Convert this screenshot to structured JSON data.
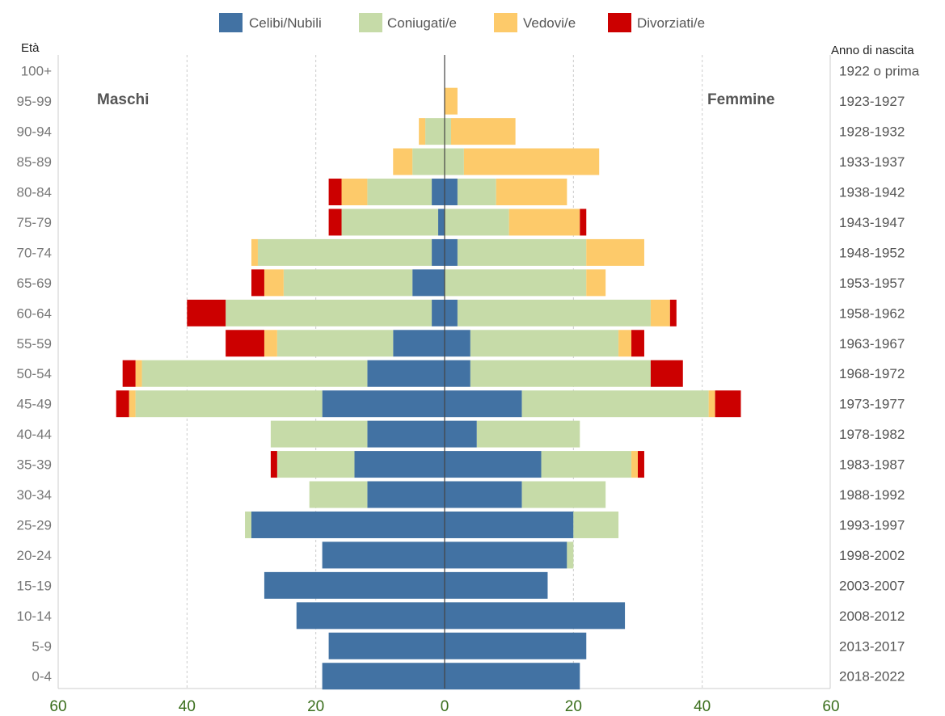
{
  "chart_data": {
    "type": "bar",
    "orientation": "horizontal",
    "stacked": true,
    "diverging": true,
    "left_label": "Maschi",
    "right_label": "Femmine",
    "y_axis_title": "Età",
    "right_axis_title": "Anno di nascita",
    "xlim": [
      -60,
      60
    ],
    "x_ticks": [
      60,
      40,
      20,
      0,
      20,
      40,
      60
    ],
    "grid": true,
    "legend_position": "top",
    "categories": [
      "100+",
      "95-99",
      "90-94",
      "85-89",
      "80-84",
      "75-79",
      "70-74",
      "65-69",
      "60-64",
      "55-59",
      "50-54",
      "45-49",
      "40-44",
      "35-39",
      "30-34",
      "25-29",
      "20-24",
      "15-19",
      "10-14",
      "5-9",
      "0-4"
    ],
    "birth_years": [
      "1922 o prima",
      "1923-1927",
      "1928-1932",
      "1933-1937",
      "1938-1942",
      "1943-1947",
      "1948-1952",
      "1953-1957",
      "1958-1962",
      "1963-1967",
      "1968-1972",
      "1973-1977",
      "1978-1982",
      "1983-1987",
      "1988-1992",
      "1993-1997",
      "1998-2002",
      "2003-2007",
      "2008-2012",
      "2013-2017",
      "2018-2022"
    ],
    "series": [
      {
        "name": "Celibi/Nubili",
        "color": "#4272a3",
        "male": [
          0,
          0,
          0,
          0,
          2,
          1,
          2,
          5,
          2,
          8,
          12,
          19,
          12,
          14,
          12,
          30,
          19,
          28,
          23,
          18,
          19
        ],
        "female": [
          0,
          0,
          0,
          0,
          2,
          0,
          2,
          0,
          2,
          4,
          4,
          12,
          5,
          15,
          12,
          20,
          19,
          16,
          28,
          22,
          21
        ]
      },
      {
        "name": "Coniugati/e",
        "color": "#c6dba8",
        "male": [
          0,
          0,
          3,
          5,
          10,
          15,
          27,
          20,
          32,
          18,
          35,
          29,
          15,
          12,
          9,
          1,
          0,
          0,
          0,
          0,
          0
        ],
        "female": [
          0,
          0,
          1,
          3,
          6,
          10,
          20,
          22,
          30,
          23,
          28,
          29,
          16,
          14,
          13,
          7,
          1,
          0,
          0,
          0,
          0
        ]
      },
      {
        "name": "Vedovi/e",
        "color": "#fdca6a",
        "male": [
          0,
          0,
          1,
          3,
          4,
          0,
          1,
          3,
          0,
          2,
          1,
          1,
          0,
          0,
          0,
          0,
          0,
          0,
          0,
          0,
          0
        ],
        "female": [
          0,
          2,
          10,
          21,
          11,
          11,
          9,
          3,
          3,
          2,
          0,
          1,
          0,
          1,
          0,
          0,
          0,
          0,
          0,
          0,
          0
        ]
      },
      {
        "name": "Divorziati/e",
        "color": "#cc0000",
        "male": [
          0,
          0,
          0,
          0,
          2,
          2,
          0,
          2,
          6,
          6,
          2,
          2,
          0,
          1,
          0,
          0,
          0,
          0,
          0,
          0,
          0
        ],
        "female": [
          0,
          0,
          0,
          0,
          0,
          1,
          0,
          0,
          1,
          2,
          5,
          4,
          0,
          1,
          0,
          0,
          0,
          0,
          0,
          0,
          0
        ]
      }
    ]
  }
}
